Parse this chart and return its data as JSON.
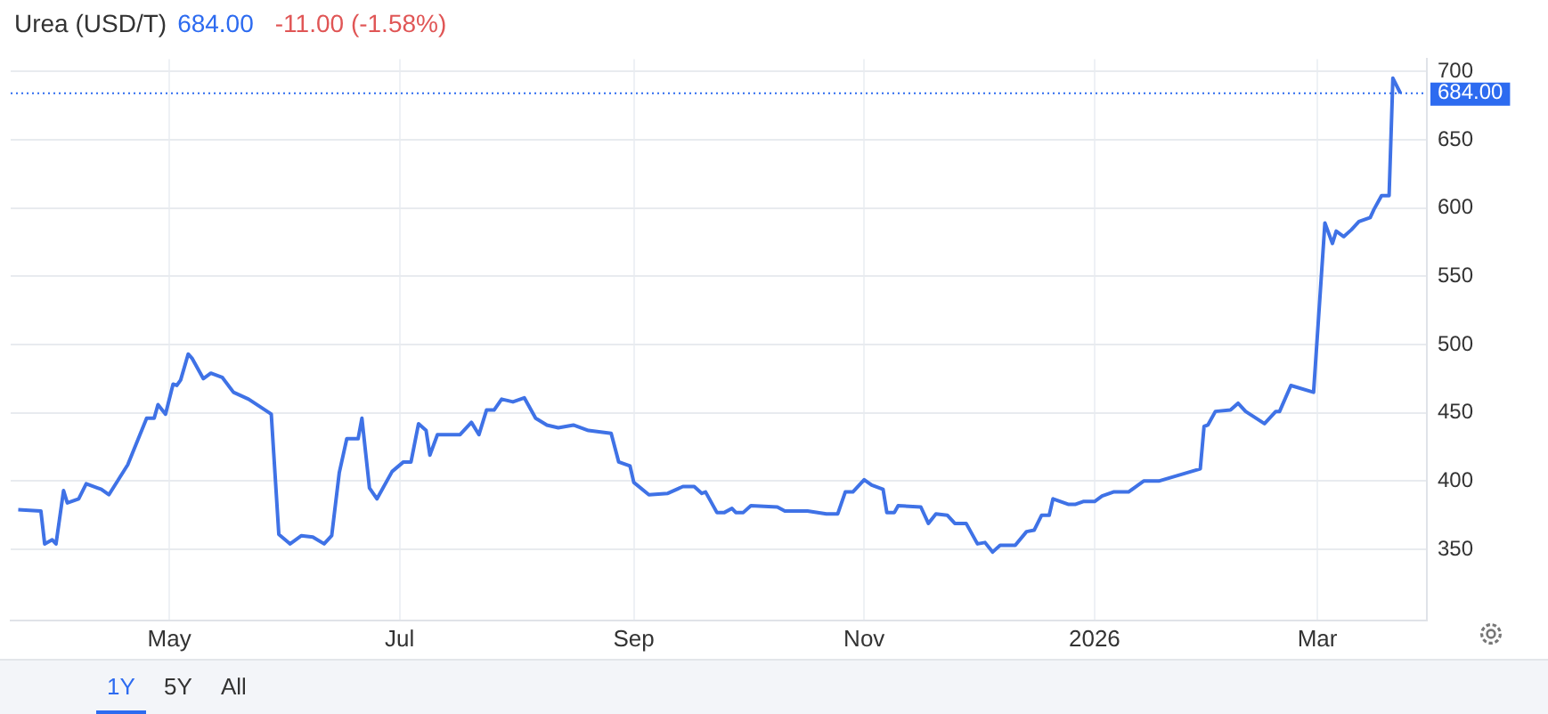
{
  "chart_data": {
    "type": "line",
    "title": "Urea (USD/T)",
    "annotations": [
      "684.00",
      "-11.00 (-1.58%)",
      "1Y",
      "5Y",
      "All"
    ],
    "x": [
      "2025-03-22",
      "2025-03-28",
      "2025-03-29",
      "2025-03-31",
      "2025-04-01",
      "2025-04-03",
      "2025-04-04",
      "2025-04-07",
      "2025-04-09",
      "2025-04-12",
      "2025-04-13",
      "2025-04-15",
      "2025-04-20",
      "2025-04-25",
      "2025-04-27",
      "2025-04-28",
      "2025-04-30",
      "2025-05-02",
      "2025-05-03",
      "2025-05-04",
      "2025-05-06",
      "2025-05-07",
      "2025-05-10",
      "2025-05-12",
      "2025-05-15",
      "2025-05-18",
      "2025-05-22",
      "2025-05-28",
      "2025-05-30",
      "2025-06-02",
      "2025-06-05",
      "2025-06-08",
      "2025-06-11",
      "2025-06-13",
      "2025-06-15",
      "2025-06-17",
      "2025-06-20",
      "2025-06-21",
      "2025-06-23",
      "2025-06-25",
      "2025-06-29",
      "2025-07-02",
      "2025-07-04",
      "2025-07-06",
      "2025-07-08",
      "2025-07-09",
      "2025-07-11",
      "2025-07-17",
      "2025-07-20",
      "2025-07-22",
      "2025-07-24",
      "2025-07-26",
      "2025-07-28",
      "2025-07-31",
      "2025-08-03",
      "2025-08-06",
      "2025-08-09",
      "2025-08-12",
      "2025-08-16",
      "2025-08-20",
      "2025-08-26",
      "2025-08-28",
      "2025-08-31",
      "2025-09-01",
      "2025-09-05",
      "2025-09-10",
      "2025-09-14",
      "2025-09-17",
      "2025-09-19",
      "2025-09-20",
      "2025-09-23",
      "2025-09-25",
      "2025-09-27",
      "2025-09-28",
      "2025-09-30",
      "2025-10-02",
      "2025-10-09",
      "2025-10-11",
      "2025-10-17",
      "2025-10-22",
      "2025-10-25",
      "2025-10-27",
      "2025-10-29",
      "2025-11-01",
      "2025-11-03",
      "2025-11-06",
      "2025-11-07",
      "2025-11-09",
      "2025-11-10",
      "2025-11-16",
      "2025-11-18",
      "2025-11-20",
      "2025-11-23",
      "2025-11-25",
      "2025-11-28",
      "2025-12-01",
      "2025-12-03",
      "2025-12-05",
      "2025-12-07",
      "2025-12-11",
      "2025-12-14",
      "2025-12-16",
      "2025-12-18",
      "2025-12-20",
      "2025-12-21",
      "2025-12-25",
      "2025-12-27",
      "2025-12-29",
      "2026-01-01",
      "2026-01-03",
      "2026-01-06",
      "2026-01-10",
      "2026-01-14",
      "2026-01-18",
      "2026-01-29",
      "2026-01-30",
      "2026-01-31",
      "2026-02-02",
      "2026-02-06",
      "2026-02-08",
      "2026-02-10",
      "2026-02-15",
      "2026-02-18",
      "2026-02-19",
      "2026-02-22",
      "2026-02-28",
      "2026-03-03",
      "2026-03-05",
      "2026-03-06",
      "2026-03-08",
      "2026-03-10",
      "2026-03-12",
      "2026-03-15",
      "2026-03-16",
      "2026-03-18",
      "2026-03-20",
      "2026-03-21",
      "2026-03-23"
    ],
    "series": [
      {
        "name": null,
        "color": "#3f72e6",
        "values": [
          379,
          378,
          354,
          357,
          354,
          393,
          384,
          387,
          398,
          395,
          394,
          390,
          412,
          446,
          446,
          456,
          449,
          471,
          470,
          474,
          493,
          490,
          475,
          479,
          476,
          465,
          460,
          449,
          361,
          354,
          360,
          359,
          354,
          360,
          406,
          431,
          431,
          446,
          395,
          387,
          407,
          414,
          414,
          442,
          437,
          419,
          434,
          434,
          443,
          434,
          452,
          452,
          460,
          458,
          461,
          446,
          441,
          439,
          441,
          437,
          435,
          414,
          411,
          399,
          390,
          391,
          396,
          396,
          391,
          392,
          377,
          377,
          380,
          377,
          377,
          382,
          381,
          378,
          378,
          376,
          376,
          392,
          392,
          401,
          397,
          394,
          377,
          377,
          382,
          381,
          369,
          376,
          375,
          369,
          369,
          354,
          355,
          348,
          353,
          353,
          363,
          364,
          375,
          375,
          387,
          383,
          383,
          385,
          385,
          389,
          392,
          392,
          400,
          400,
          409,
          440,
          441,
          451,
          452,
          457,
          451,
          442,
          451,
          451,
          470,
          465,
          589,
          574,
          583,
          579,
          584,
          590,
          593,
          599,
          609,
          609,
          695,
          684
        ]
      }
    ],
    "xlim": [
      "2025-03-20",
      "2026-03-30"
    ],
    "xticks": [
      {
        "value": "2025-05-01",
        "label": "May"
      },
      {
        "value": "2025-07-01",
        "label": "Jul"
      },
      {
        "value": "2025-09-01",
        "label": "Sep"
      },
      {
        "value": "2025-11-01",
        "label": "Nov"
      },
      {
        "value": "2026-01-01",
        "label": "2026"
      },
      {
        "value": "2026-03-01",
        "label": "Mar"
      }
    ],
    "ylim": [
      298,
      709
    ],
    "yticks": [
      350,
      400,
      450,
      500,
      550,
      600,
      650,
      700
    ],
    "ref_lines": [
      {
        "axis": "y",
        "value": 684,
        "label": "684.00",
        "color": "#2d6bf0",
        "line_style": "dotted"
      }
    ],
    "grid": true,
    "marker": "none",
    "line_style": "solid"
  }
}
